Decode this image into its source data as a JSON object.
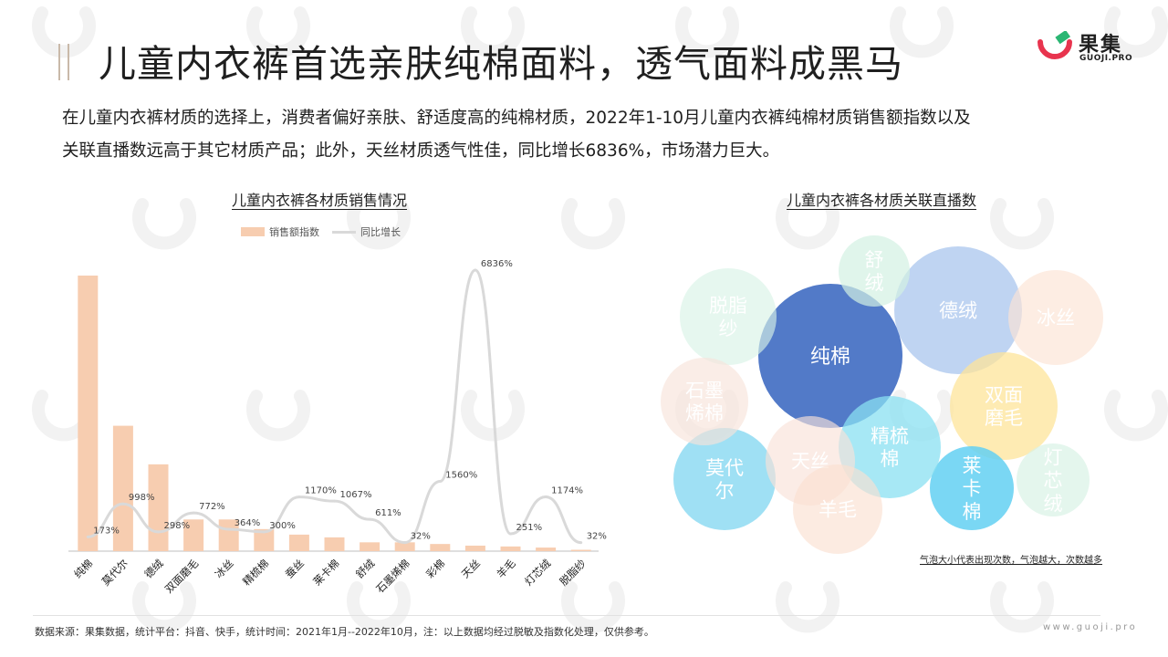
{
  "title": "儿童内衣裤首选亲肤纯棉面料，透气面料成黑马",
  "brand": {
    "name": "果集",
    "domain": "GUOJI.PRO",
    "logo_colors": [
      "#e8344e",
      "#2bb673"
    ]
  },
  "intro": [
    "在儿童内衣裤材质的选择上，消费者偏好亲肤、舒适度高的纯棉材质，2022年1-10月儿童内衣裤纯棉材质销售额指数以及",
    "关联直播数远高于其它材质产品；此外，天丝材质透气性佳，同比增长6836%，市场潜力巨大。"
  ],
  "chart_data": [
    {
      "type": "bar",
      "title": "儿童内衣裤各材质销售情况",
      "legend": [
        "销售额指数",
        "同比增长"
      ],
      "legend_position": "top",
      "categories": [
        "纯棉",
        "莫代尔",
        "德绒",
        "双面磨毛",
        "冰丝",
        "精梳棉",
        "蚕丝",
        "莱卡棉",
        "舒绒",
        "石墨烯棉",
        "彩棉",
        "天丝",
        "羊毛",
        "灯芯绒",
        "脱脂纱"
      ],
      "series": [
        {
          "name": "销售额指数",
          "values": [
            100,
            45.5,
            31.5,
            11.5,
            11.5,
            8,
            6,
            5,
            3.2,
            3.2,
            2.6,
            2,
            1.7,
            1.3,
            0.5
          ]
        },
        {
          "name": "同比增长",
          "values": [
            173,
            998,
            298,
            772,
            364,
            300,
            1170,
            1067,
            611,
            32,
            1560,
            6836,
            251,
            1174,
            32
          ],
          "labels": [
            "173%",
            "998%",
            "298%",
            "772%",
            "364%",
            "300%",
            "1170%",
            "1067%",
            "611%",
            "32%",
            "1560%",
            "6836%",
            "251%",
            "1174%",
            "32%"
          ]
        }
      ],
      "colors": {
        "bar": "#f7cdb0",
        "line": "#d9d9d9"
      },
      "grid": false
    },
    {
      "type": "bubble",
      "title": "儿童内衣裤各材质关联直播数",
      "note": "气泡大小代表出现次数，气泡越大，次数越多",
      "bubbles": [
        {
          "label": "纯棉",
          "lines": [
            "纯棉"
          ],
          "size": 100,
          "color": "#3f6cc2"
        },
        {
          "label": "德绒",
          "lines": [
            "德绒"
          ],
          "size": 47,
          "color": "#a9c6ee"
        },
        {
          "label": "双面磨毛",
          "lines": [
            "双面",
            "磨毛"
          ],
          "size": 33,
          "color": "#fde49a"
        },
        {
          "label": "莱卡棉",
          "lines": [
            "莱",
            "卡",
            "棉"
          ],
          "size": 18,
          "color": "#63d0f2"
        },
        {
          "label": "精梳棉",
          "lines": [
            "精梳",
            "棉"
          ],
          "size": 28,
          "color": "#8ae0f2"
        },
        {
          "label": "莫代尔",
          "lines": [
            "莫代",
            "尔"
          ],
          "size": 28,
          "color": "#7fd6f0"
        },
        {
          "label": "天丝",
          "lines": [
            "天丝"
          ],
          "size": 21,
          "color": "#f9e2d9"
        },
        {
          "label": "羊毛",
          "lines": [
            "羊毛"
          ],
          "size": 21,
          "color": "#fbe1d1"
        },
        {
          "label": "冰丝",
          "lines": [
            "冰丝"
          ],
          "size": 25,
          "color": "#fce3d4"
        },
        {
          "label": "脱脂纱",
          "lines": [
            "脱脂",
            "纱"
          ],
          "size": 25,
          "color": "#d9f3e6"
        },
        {
          "label": "石墨烯棉",
          "lines": [
            "石墨",
            "烯棉"
          ],
          "size": 19,
          "color": "#f8e3da"
        },
        {
          "label": "舒绒",
          "lines": [
            "舒",
            "绒"
          ],
          "size": 13,
          "color": "#d3f1e2"
        },
        {
          "label": "灯芯绒",
          "lines": [
            "灯",
            "芯",
            "绒"
          ],
          "size": 14,
          "color": "#d8f2e5"
        }
      ]
    }
  ],
  "footer": {
    "source": "数据来源：果集数据，统计平台：抖音、快手，统计时间：2021年1月--2022年10月，注：以上数据均经过脱敏及指数化处理，仅供参考。",
    "site": "www.guoji.pro"
  }
}
